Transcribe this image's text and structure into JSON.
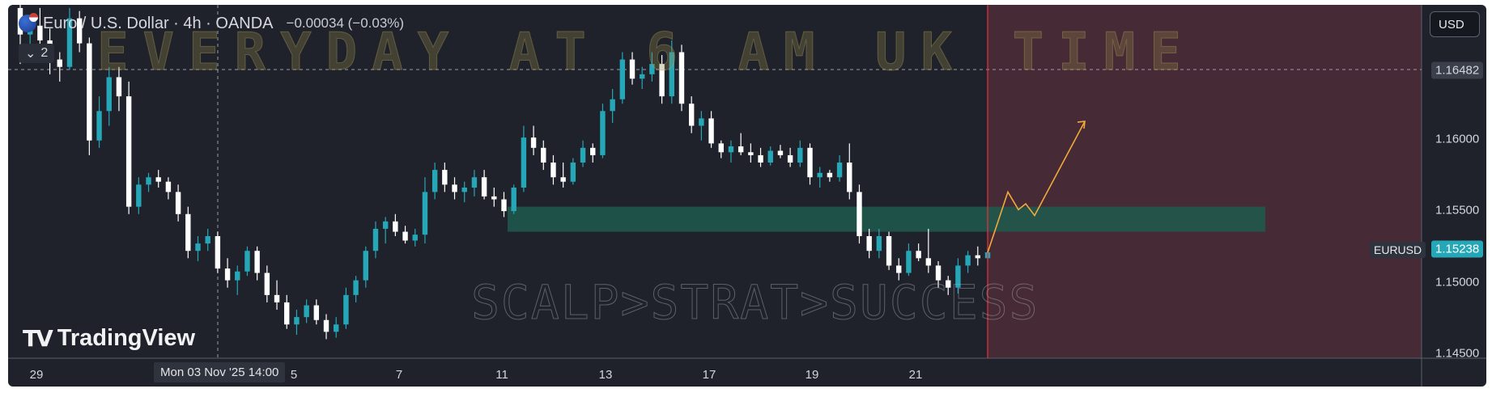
{
  "header": {
    "symbol_title": "Euro / U.S. Dollar · 4h · OANDA",
    "change": "−0.00034 (−0.03%)",
    "indicator_count": "2"
  },
  "currency_button": "USD",
  "symbol_tag": "EURUSD",
  "watermark_top": "EVERYDAY AT 6 AM UK TIME",
  "brand": "TradingView",
  "crosshair_time": "Mon 03 Nov '25   14:00",
  "colors": {
    "up": "#26a7b8",
    "down": "#ffffff",
    "zone": "#1f5a4d",
    "future": "#4a2b36",
    "projection": "#f2a93b",
    "now_line": "#e0303a"
  },
  "chart_data": {
    "type": "candlestick",
    "symbol": "EURUSD",
    "timeframe": "4h",
    "y_ticks": [
      "1.16482",
      "1.16000",
      "1.15500",
      "1.15238",
      "1.15000",
      "1.14500"
    ],
    "x_ticks": [
      "29",
      "5",
      "7",
      "11",
      "13",
      "17",
      "19",
      "21"
    ],
    "ylim": [
      1.145,
      1.171
    ],
    "last_price": 1.15238,
    "crosshair_price": 1.16482,
    "zone": {
      "low": 1.1538,
      "high": 1.1555
    },
    "projection_path": [
      1.15238,
      1.1565,
      1.1553,
      1.1557,
      1.1549,
      1.1613
    ],
    "candles": [
      [
        1.169,
        1.1699,
        1.1652,
        1.1672
      ],
      [
        1.1672,
        1.1682,
        1.1655,
        1.1678
      ],
      [
        1.1678,
        1.169,
        1.166,
        1.1668
      ],
      [
        1.1668,
        1.1676,
        1.1645,
        1.1655
      ],
      [
        1.1655,
        1.166,
        1.164,
        1.165
      ],
      [
        1.165,
        1.169,
        1.1648,
        1.1683
      ],
      [
        1.1683,
        1.1688,
        1.166,
        1.1666
      ],
      [
        1.1666,
        1.167,
        1.159,
        1.16
      ],
      [
        1.16,
        1.163,
        1.1595,
        1.162
      ],
      [
        1.162,
        1.165,
        1.161,
        1.1643
      ],
      [
        1.1643,
        1.165,
        1.162,
        1.163
      ],
      [
        1.163,
        1.164,
        1.155,
        1.1555
      ],
      [
        1.1555,
        1.1575,
        1.155,
        1.157
      ],
      [
        1.157,
        1.1578,
        1.1565,
        1.1575
      ],
      [
        1.1575,
        1.158,
        1.1568,
        1.1572
      ],
      [
        1.1572,
        1.1575,
        1.156,
        1.1565
      ],
      [
        1.1565,
        1.157,
        1.1545,
        1.155
      ],
      [
        1.155,
        1.1555,
        1.152,
        1.1525
      ],
      [
        1.1525,
        1.1535,
        1.1518,
        1.153
      ],
      [
        1.153,
        1.154,
        1.1525,
        1.1535
      ],
      [
        1.1535,
        1.1538,
        1.151,
        1.1513
      ],
      [
        1.1513,
        1.152,
        1.15,
        1.1505
      ],
      [
        1.1505,
        1.1515,
        1.1495,
        1.1511
      ],
      [
        1.1511,
        1.1528,
        1.1508,
        1.1525
      ],
      [
        1.1525,
        1.1528,
        1.1505,
        1.151
      ],
      [
        1.151,
        1.1515,
        1.149,
        1.1495
      ],
      [
        1.1495,
        1.1505,
        1.1485,
        1.149
      ],
      [
        1.149,
        1.1495,
        1.1472,
        1.1475
      ],
      [
        1.1475,
        1.1485,
        1.1468,
        1.148
      ],
      [
        1.148,
        1.1492,
        1.1476,
        1.1488
      ],
      [
        1.1488,
        1.1492,
        1.1475,
        1.1478
      ],
      [
        1.1478,
        1.1482,
        1.1465,
        1.147
      ],
      [
        1.147,
        1.148,
        1.1466,
        1.1475
      ],
      [
        1.1475,
        1.15,
        1.1472,
        1.1495
      ],
      [
        1.1495,
        1.1508,
        1.149,
        1.1505
      ],
      [
        1.1505,
        1.1528,
        1.15,
        1.1525
      ],
      [
        1.1525,
        1.1545,
        1.152,
        1.154
      ],
      [
        1.154,
        1.1548,
        1.153,
        1.1545
      ],
      [
        1.1545,
        1.155,
        1.1535,
        1.1538
      ],
      [
        1.1538,
        1.1542,
        1.153,
        1.1532
      ],
      [
        1.1532,
        1.154,
        1.1528,
        1.1536
      ],
      [
        1.1536,
        1.1575,
        1.153,
        1.1565
      ],
      [
        1.1565,
        1.1585,
        1.156,
        1.158
      ],
      [
        1.158,
        1.1585,
        1.1565,
        1.157
      ],
      [
        1.157,
        1.1575,
        1.156,
        1.1565
      ],
      [
        1.1565,
        1.1572,
        1.1558,
        1.1568
      ],
      [
        1.1568,
        1.158,
        1.1562,
        1.1575
      ],
      [
        1.1575,
        1.158,
        1.156,
        1.1562
      ],
      [
        1.1562,
        1.1568,
        1.1555,
        1.156
      ],
      [
        1.156,
        1.1565,
        1.1548,
        1.1552
      ],
      [
        1.1552,
        1.157,
        1.155,
        1.1568
      ],
      [
        1.1568,
        1.161,
        1.1565,
        1.1602
      ],
      [
        1.1602,
        1.161,
        1.159,
        1.1595
      ],
      [
        1.1595,
        1.16,
        1.158,
        1.1585
      ],
      [
        1.1585,
        1.159,
        1.157,
        1.1575
      ],
      [
        1.1575,
        1.1585,
        1.1568,
        1.1572
      ],
      [
        1.1572,
        1.1588,
        1.157,
        1.1585
      ],
      [
        1.1585,
        1.16,
        1.1582,
        1.1595
      ],
      [
        1.1595,
        1.1598,
        1.1585,
        1.159
      ],
      [
        1.159,
        1.1625,
        1.1588,
        1.162
      ],
      [
        1.162,
        1.1635,
        1.1612,
        1.1628
      ],
      [
        1.1628,
        1.166,
        1.1625,
        1.1655
      ],
      [
        1.1655,
        1.166,
        1.1638,
        1.1642
      ],
      [
        1.1642,
        1.165,
        1.1635,
        1.1645
      ],
      [
        1.1645,
        1.166,
        1.164,
        1.1652
      ],
      [
        1.1652,
        1.1658,
        1.1625,
        1.163
      ],
      [
        1.163,
        1.1668,
        1.1625,
        1.166
      ],
      [
        1.166,
        1.1665,
        1.162,
        1.1625
      ],
      [
        1.1625,
        1.163,
        1.1605,
        1.161
      ],
      [
        1.161,
        1.162,
        1.16,
        1.1615
      ],
      [
        1.1615,
        1.162,
        1.1595,
        1.1598
      ],
      [
        1.1598,
        1.16,
        1.1588,
        1.1592
      ],
      [
        1.1592,
        1.16,
        1.1585,
        1.1596
      ],
      [
        1.1596,
        1.1605,
        1.159,
        1.1592
      ],
      [
        1.1592,
        1.1598,
        1.1585,
        1.159
      ],
      [
        1.159,
        1.1595,
        1.1582,
        1.1585
      ],
      [
        1.1585,
        1.1596,
        1.1583,
        1.1593
      ],
      [
        1.1593,
        1.1597,
        1.1588,
        1.159
      ],
      [
        1.159,
        1.1595,
        1.1582,
        1.1585
      ],
      [
        1.1585,
        1.16,
        1.1582,
        1.1595
      ],
      [
        1.1595,
        1.1598,
        1.157,
        1.1575
      ],
      [
        1.1575,
        1.1582,
        1.1568,
        1.1578
      ],
      [
        1.1578,
        1.158,
        1.1572,
        1.1575
      ],
      [
        1.1575,
        1.159,
        1.1572,
        1.1585
      ],
      [
        1.1585,
        1.1598,
        1.156,
        1.1565
      ],
      [
        1.1565,
        1.157,
        1.153,
        1.1535
      ],
      [
        1.1535,
        1.154,
        1.152,
        1.1525
      ],
      [
        1.1525,
        1.154,
        1.152,
        1.1535
      ],
      [
        1.1535,
        1.1538,
        1.1512,
        1.1515
      ],
      [
        1.1515,
        1.152,
        1.1505,
        1.151
      ],
      [
        1.151,
        1.153,
        1.1508,
        1.1525
      ],
      [
        1.1525,
        1.153,
        1.1518,
        1.152
      ],
      [
        1.152,
        1.154,
        1.151,
        1.1515
      ],
      [
        1.1515,
        1.1518,
        1.15,
        1.1505
      ],
      [
        1.1505,
        1.1508,
        1.1495,
        1.15
      ],
      [
        1.15,
        1.152,
        1.1496,
        1.1515
      ],
      [
        1.1515,
        1.1525,
        1.151,
        1.1522
      ],
      [
        1.1522,
        1.1528,
        1.1515,
        1.152
      ],
      [
        1.152,
        1.1527,
        1.1518,
        1.1524
      ]
    ]
  }
}
